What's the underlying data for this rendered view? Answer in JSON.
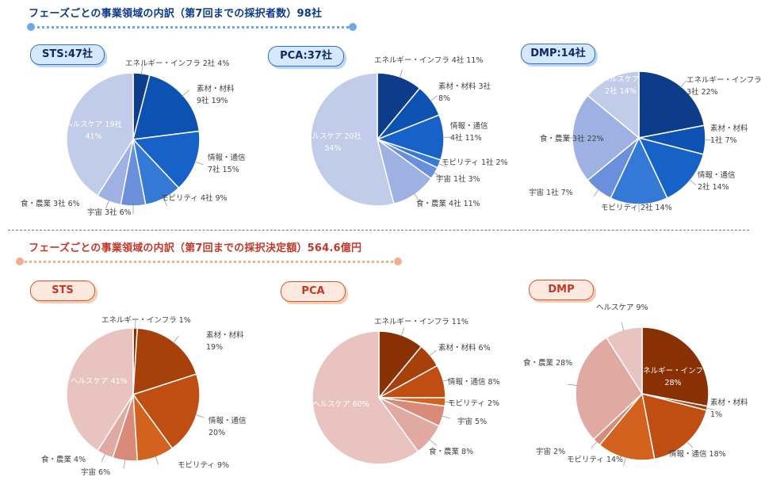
{
  "headers": {
    "top": "フェーズごとの事業領域の内訳（第7回までの採択者数）98社",
    "bottom": "フェーズごとの事業領域の内訳（第7回までの採択決定額）564.6億円"
  },
  "pills": {
    "sts_count": "STS:47社",
    "pca_count": "PCA:37社",
    "dmp_count": "DMP:14社",
    "sts_amount": "STS",
    "pca_amount": "PCA",
    "dmp_amount": "DMP"
  },
  "colors": {
    "blue_accent": "#2f6fd0",
    "orange_accent": "#c0392b"
  },
  "chart_data": [
    {
      "id": "sts_count",
      "type": "pie",
      "title": "STS:47社",
      "slices": [
        {
          "label": "エネルギー・インフラ",
          "lines": [
            "エネルギー・インフラ 2社 4%"
          ],
          "count": 2,
          "percent": 4,
          "color": "#0d3d8a"
        },
        {
          "label": "素材・材料",
          "lines": [
            "素材・材料",
            "9社 19%"
          ],
          "count": 9,
          "percent": 19,
          "color": "#0d52b3"
        },
        {
          "label": "情報・通信",
          "lines": [
            "情報・通信",
            "7社 15%"
          ],
          "count": 7,
          "percent": 15,
          "color": "#1662c9"
        },
        {
          "label": "モビリティ",
          "lines": [
            "モビリティ 4社 9%"
          ],
          "count": 4,
          "percent": 9,
          "color": "#3479d6"
        },
        {
          "label": "宇宙",
          "lines": [
            "宇宙 3社 6%"
          ],
          "count": 3,
          "percent": 6,
          "color": "#6a8fdb"
        },
        {
          "label": "食・農業",
          "lines": [
            "食・農業 3社 6%"
          ],
          "count": 3,
          "percent": 6,
          "color": "#9fb1e2"
        },
        {
          "label": "ヘルスケア",
          "lines": [
            "ヘルスケア 19社",
            "41%"
          ],
          "count": 19,
          "percent": 41,
          "color": "#c1cbea",
          "inside": true
        }
      ]
    },
    {
      "id": "pca_count",
      "type": "pie",
      "title": "PCA:37社",
      "slices": [
        {
          "label": "エネルギー・インフラ",
          "lines": [
            "エネルギー・インフラ 4社 11%"
          ],
          "count": 4,
          "percent": 11,
          "color": "#0d3d8a"
        },
        {
          "label": "素材・材料",
          "lines": [
            "素材・材料 3社",
            "8%"
          ],
          "count": 3,
          "percent": 8,
          "color": "#0d52b3"
        },
        {
          "label": "情報・通信",
          "lines": [
            "情報・通信",
            "4社 11%"
          ],
          "count": 4,
          "percent": 11,
          "color": "#1662c9"
        },
        {
          "label": "モビリティ",
          "lines": [
            "モビリティ 1社 2%"
          ],
          "count": 1,
          "percent": 2,
          "color": "#3479d6"
        },
        {
          "label": "宇宙",
          "lines": [
            "宇宙 1社 3%"
          ],
          "count": 1,
          "percent": 3,
          "color": "#6a8fdb"
        },
        {
          "label": "食・農業",
          "lines": [
            "食・農業 4社 11%"
          ],
          "count": 4,
          "percent": 11,
          "color": "#9fb1e2"
        },
        {
          "label": "ヘルスケア",
          "lines": [
            "ヘルスケア 20社",
            "54%"
          ],
          "count": 20,
          "percent": 54,
          "color": "#c1cbea",
          "inside": true
        }
      ]
    },
    {
      "id": "dmp_count",
      "type": "pie",
      "title": "DMP:14社",
      "slices": [
        {
          "label": "エネルギー・インフラ",
          "lines": [
            "エネルギー・インフラ",
            "3社 22%"
          ],
          "count": 3,
          "percent": 22,
          "color": "#0d3d8a"
        },
        {
          "label": "素材・材料",
          "lines": [
            "素材・材料",
            "1社 7%"
          ],
          "count": 1,
          "percent": 7,
          "color": "#0d52b3"
        },
        {
          "label": "情報・通信",
          "lines": [
            "情報・通信",
            "2社 14%"
          ],
          "count": 2,
          "percent": 14,
          "color": "#1662c9"
        },
        {
          "label": "モビリティ",
          "lines": [
            "モビリティ 2社 14%"
          ],
          "count": 2,
          "percent": 14,
          "color": "#3479d6"
        },
        {
          "label": "宇宙",
          "lines": [
            "宇宙 1社 7%"
          ],
          "count": 1,
          "percent": 7,
          "color": "#6a8fdb"
        },
        {
          "label": "食・農業",
          "lines": [
            "食・農業 3社 22%"
          ],
          "count": 3,
          "percent": 22,
          "color": "#9fb1e2"
        },
        {
          "label": "ヘルスケア",
          "lines": [
            "ヘルスケア",
            "2社 14%"
          ],
          "count": 2,
          "percent": 14,
          "color": "#c1cbea",
          "inside": true
        }
      ]
    },
    {
      "id": "sts_amount",
      "type": "pie",
      "title": "STS",
      "slices": [
        {
          "label": "エネルギー・インフラ",
          "lines": [
            "エネルギー・インフラ 1%"
          ],
          "percent": 1,
          "color": "#8a3005"
        },
        {
          "label": "素材・材料",
          "lines": [
            "素材・材料",
            "19%"
          ],
          "percent": 19,
          "color": "#a8400c"
        },
        {
          "label": "情報・通信",
          "lines": [
            "情報・通信",
            "20%"
          ],
          "percent": 20,
          "color": "#c04e12"
        },
        {
          "label": "モビリティ",
          "lines": [
            "モビリティ 9%"
          ],
          "percent": 9,
          "color": "#d2621e"
        },
        {
          "label": "宇宙",
          "lines": [
            "宇宙 6%"
          ],
          "percent": 6,
          "color": "#d98a78"
        },
        {
          "label": "食・農業",
          "lines": [
            "食・農業 4%"
          ],
          "percent": 4,
          "color": "#e0aaa2"
        },
        {
          "label": "ヘルスケア",
          "lines": [
            "ヘルスケア 41%"
          ],
          "percent": 41,
          "color": "#e8c3bf",
          "inside": true
        }
      ]
    },
    {
      "id": "pca_amount",
      "type": "pie",
      "title": "PCA",
      "slices": [
        {
          "label": "エネルギー・インフラ",
          "lines": [
            "エネルギー・インフラ 11%"
          ],
          "percent": 11,
          "color": "#8a3005"
        },
        {
          "label": "素材・材料",
          "lines": [
            "素材・材料 6%"
          ],
          "percent": 6,
          "color": "#a8400c"
        },
        {
          "label": "情報・通信",
          "lines": [
            "情報・通信 8%"
          ],
          "percent": 8,
          "color": "#c04e12"
        },
        {
          "label": "モビリティ",
          "lines": [
            "モビリティ 2%"
          ],
          "percent": 2,
          "color": "#d2621e"
        },
        {
          "label": "宇宙",
          "lines": [
            "宇宙 5%"
          ],
          "percent": 5,
          "color": "#d98a78"
        },
        {
          "label": "食・農業",
          "lines": [
            "食・農業 8%"
          ],
          "percent": 8,
          "color": "#e0aaa2"
        },
        {
          "label": "ヘルスケア",
          "lines": [
            "ヘルスケア 60%"
          ],
          "percent": 60,
          "color": "#e8c3bf",
          "inside": true
        }
      ]
    },
    {
      "id": "dmp_amount",
      "type": "pie",
      "title": "DMP",
      "slices": [
        {
          "label": "エネルギー・インフラ",
          "lines": [
            "エネルギー・インフラ",
            "28%"
          ],
          "percent": 28,
          "color": "#8a3005",
          "inside": true
        },
        {
          "label": "素材・材料",
          "lines": [
            "素材・材料",
            "1%"
          ],
          "percent": 1,
          "color": "#a8400c"
        },
        {
          "label": "情報・通信",
          "lines": [
            "情報・通信 18%"
          ],
          "percent": 18,
          "color": "#c04e12"
        },
        {
          "label": "モビリティ",
          "lines": [
            "モビリティ 14%"
          ],
          "percent": 14,
          "color": "#d2621e"
        },
        {
          "label": "宇宙",
          "lines": [
            "宇宙 2%"
          ],
          "percent": 2,
          "color": "#d98a78"
        },
        {
          "label": "食・農業",
          "lines": [
            "食・農業 28%"
          ],
          "percent": 28,
          "color": "#e0aaa2"
        },
        {
          "label": "ヘルスケア",
          "lines": [
            "ヘルスケア 9%"
          ],
          "percent": 9,
          "color": "#e8c3bf"
        }
      ]
    }
  ]
}
